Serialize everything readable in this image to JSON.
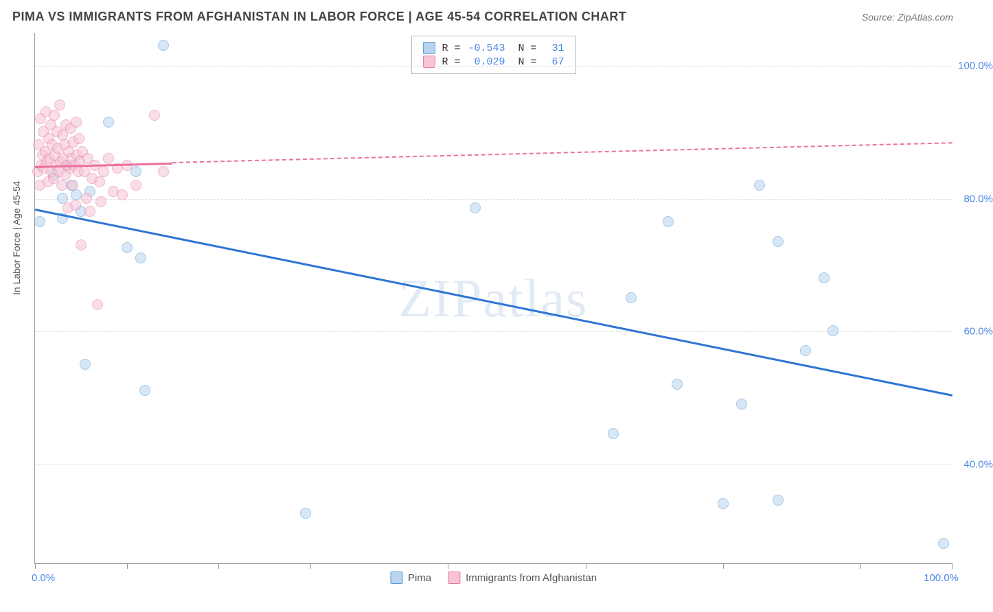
{
  "title": "PIMA VS IMMIGRANTS FROM AFGHANISTAN IN LABOR FORCE | AGE 45-54 CORRELATION CHART",
  "source": "Source: ZipAtlas.com",
  "watermark": "ZIPatlas",
  "ylabel": "In Labor Force | Age 45-54",
  "chart": {
    "type": "scatter",
    "xlim": [
      0,
      100
    ],
    "ylim": [
      25,
      105
    ],
    "yticks": [
      40,
      60,
      80,
      100
    ],
    "ytick_labels": [
      "40.0%",
      "60.0%",
      "80.0%",
      "100.0%"
    ],
    "xticks": [
      0,
      10,
      20,
      30,
      45,
      60,
      75,
      90,
      100
    ],
    "x_axis_min_label": "0.0%",
    "x_axis_max_label": "100.0%",
    "grid_color": "#dddddd",
    "background_color": "#ffffff",
    "axis_color": "#999999",
    "tick_label_color": "#4a86e8",
    "series": [
      {
        "name": "Pima",
        "marker_fill": "#b8d4f0",
        "marker_stroke": "#5b9bd5",
        "line_color": "#2e75d6",
        "R": "-0.543",
        "N": "31",
        "trend": {
          "x0": 0,
          "y0": 78.5,
          "x1": 100,
          "y1": 50.5,
          "solid_until_x": 100
        },
        "points": [
          [
            0.5,
            76.5
          ],
          [
            2,
            83.5
          ],
          [
            3,
            80
          ],
          [
            3.5,
            85
          ],
          [
            3,
            77
          ],
          [
            4,
            82
          ],
          [
            4.5,
            80.5
          ],
          [
            5,
            78
          ],
          [
            5.5,
            55
          ],
          [
            6,
            81
          ],
          [
            8,
            91.5
          ],
          [
            10,
            72.5
          ],
          [
            11,
            84
          ],
          [
            11.5,
            71
          ],
          [
            12,
            51
          ],
          [
            14,
            103
          ],
          [
            29.5,
            32.5
          ],
          [
            48,
            78.5
          ],
          [
            63,
            44.5
          ],
          [
            65,
            65
          ],
          [
            69,
            76.5
          ],
          [
            70,
            52
          ],
          [
            75,
            34
          ],
          [
            77,
            49
          ],
          [
            79,
            82
          ],
          [
            81,
            73.5
          ],
          [
            81,
            34.5
          ],
          [
            84,
            57
          ],
          [
            86,
            68
          ],
          [
            87,
            60
          ],
          [
            99,
            28
          ]
        ]
      },
      {
        "name": "Immigrants from Afghanistan",
        "marker_fill": "#f7c4d4",
        "marker_stroke": "#e87ba4",
        "line_color": "#ec6fa0",
        "R": "0.029",
        "N": "67",
        "trend": {
          "x0": 0,
          "y0": 85,
          "x1": 100,
          "y1": 88.5,
          "solid_until_x": 15
        },
        "points": [
          [
            0.3,
            84
          ],
          [
            0.4,
            88
          ],
          [
            0.5,
            82
          ],
          [
            0.6,
            92
          ],
          [
            0.7,
            85
          ],
          [
            0.8,
            86.5
          ],
          [
            0.9,
            90
          ],
          [
            1,
            84.5
          ],
          [
            1.1,
            87
          ],
          [
            1.2,
            93
          ],
          [
            1.3,
            85.5
          ],
          [
            1.4,
            82.5
          ],
          [
            1.5,
            89
          ],
          [
            1.6,
            86
          ],
          [
            1.7,
            91
          ],
          [
            1.8,
            84
          ],
          [
            1.9,
            88
          ],
          [
            2,
            83
          ],
          [
            2.1,
            92.5
          ],
          [
            2.2,
            86.5
          ],
          [
            2.3,
            85
          ],
          [
            2.4,
            90
          ],
          [
            2.5,
            87.5
          ],
          [
            2.6,
            84
          ],
          [
            2.7,
            94
          ],
          [
            2.8,
            85.5
          ],
          [
            2.9,
            82
          ],
          [
            3,
            89.5
          ],
          [
            3.1,
            86
          ],
          [
            3.2,
            88
          ],
          [
            3.3,
            83.5
          ],
          [
            3.4,
            91
          ],
          [
            3.5,
            85
          ],
          [
            3.6,
            78.5
          ],
          [
            3.7,
            87
          ],
          [
            3.8,
            84.5
          ],
          [
            3.9,
            90.5
          ],
          [
            4,
            86
          ],
          [
            4.1,
            82
          ],
          [
            4.2,
            88.5
          ],
          [
            4.3,
            85
          ],
          [
            4.4,
            79
          ],
          [
            4.5,
            91.5
          ],
          [
            4.6,
            86.5
          ],
          [
            4.7,
            84
          ],
          [
            4.8,
            89
          ],
          [
            4.9,
            85.5
          ],
          [
            5,
            73
          ],
          [
            5.2,
            87
          ],
          [
            5.4,
            84
          ],
          [
            5.6,
            80
          ],
          [
            5.8,
            86
          ],
          [
            6,
            78
          ],
          [
            6.2,
            83
          ],
          [
            6.5,
            85
          ],
          [
            6.8,
            64
          ],
          [
            7,
            82.5
          ],
          [
            7.2,
            79.5
          ],
          [
            7.5,
            84
          ],
          [
            8,
            86
          ],
          [
            8.5,
            81
          ],
          [
            9,
            84.5
          ],
          [
            9.5,
            80.5
          ],
          [
            10,
            85
          ],
          [
            11,
            82
          ],
          [
            13,
            92.5
          ],
          [
            14,
            84
          ]
        ]
      }
    ]
  },
  "bottom_legend": [
    {
      "label": "Pima",
      "fill": "#b8d4f0",
      "stroke": "#5b9bd5"
    },
    {
      "label": "Immigrants from Afghanistan",
      "fill": "#f7c4d4",
      "stroke": "#e87ba4"
    }
  ]
}
